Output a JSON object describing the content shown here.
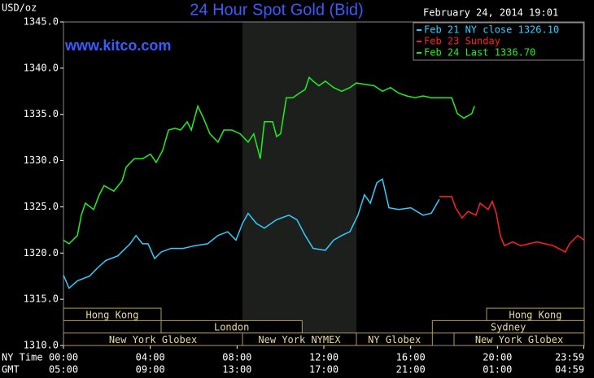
{
  "chart_data": {
    "type": "line",
    "title": "24 Hour Spot Gold (Bid)",
    "y_label": "USD/oz",
    "timestamp": "February 24, 2014 19:01",
    "source": "www.kitco.com",
    "x_row_labels": [
      "NY Time",
      "GMT"
    ],
    "xlim": [
      0,
      24
    ],
    "ylim": [
      1310,
      1345
    ],
    "xticks": [
      {
        "value": 0,
        "label": "00:00"
      },
      {
        "value": 4,
        "label": "04:00"
      },
      {
        "value": 8,
        "label": "08:00"
      },
      {
        "value": 12,
        "label": "12:00"
      },
      {
        "value": 16,
        "label": "16:00"
      },
      {
        "value": 20,
        "label": "20:00"
      },
      {
        "value": 23.98,
        "label": "23:59"
      }
    ],
    "gmt_ticks": [
      {
        "value": 0,
        "label": "05:00"
      },
      {
        "value": 4,
        "label": "09:00"
      },
      {
        "value": 8,
        "label": "13:00"
      },
      {
        "value": 12,
        "label": "17:00"
      },
      {
        "value": 16,
        "label": "21:00"
      },
      {
        "value": 20,
        "label": "01:00"
      },
      {
        "value": 23.98,
        "label": "04:59"
      }
    ],
    "yticks": [
      {
        "value": 1310,
        "label": "1310.0"
      },
      {
        "value": 1315,
        "label": "1315.0"
      },
      {
        "value": 1320,
        "label": "1320.0"
      },
      {
        "value": 1325,
        "label": "1325.0"
      },
      {
        "value": 1330,
        "label": "1330.0"
      },
      {
        "value": 1335,
        "label": "1335.0"
      },
      {
        "value": 1340,
        "label": "1340.0"
      },
      {
        "value": 1345,
        "label": "1345.0"
      }
    ],
    "grid": false,
    "legend": "top-right",
    "shade": [
      8.25,
      13.5
    ],
    "sessions": [
      [
        {
          "label": "Hong Kong",
          "start": 0,
          "end": 4.5
        },
        {
          "label": "Hong Kong",
          "start": 19.5,
          "end": 24
        }
      ],
      [
        {
          "label": "London",
          "start": 4.5,
          "end": 11
        },
        {
          "label": "Sydney",
          "start": 17,
          "end": 24
        }
      ],
      [
        {
          "label": "New York Globex",
          "start": 0,
          "end": 8.25
        },
        {
          "label": "New York NYMEX",
          "start": 8.25,
          "end": 13.5
        },
        {
          "label": "NY Globex",
          "start": 13.5,
          "end": 17
        },
        {
          "label": "New York Globex",
          "start": 18,
          "end": 24
        }
      ]
    ],
    "series": [
      {
        "name": "Feb 21 NY close 1326.10",
        "color": "#33ccff",
        "x": [
          0,
          0.26,
          0.64,
          1.2,
          1.57,
          1.95,
          2.51,
          3.07,
          3.34,
          3.64,
          3.9,
          4.2,
          4.5,
          4.95,
          5.51,
          6.07,
          6.64,
          7.12,
          7.57,
          7.95,
          8.25,
          8.51,
          8.89,
          9.26,
          9.82,
          10.39,
          10.76,
          11.14,
          11.51,
          12.07,
          12.45,
          12.82,
          13.2,
          13.57,
          13.87,
          14.14,
          14.44,
          14.7,
          15.0,
          15.45,
          16.01,
          16.57,
          16.95,
          17.32
        ],
        "values": [
          1317.6,
          1316.2,
          1317.0,
          1317.5,
          1318.4,
          1319.2,
          1319.7,
          1321.0,
          1321.9,
          1321.0,
          1321.0,
          1319.4,
          1320.1,
          1320.5,
          1320.5,
          1320.8,
          1321.0,
          1321.9,
          1322.3,
          1321.4,
          1323.2,
          1324.3,
          1323.2,
          1322.7,
          1323.6,
          1324.1,
          1323.6,
          1321.9,
          1320.5,
          1320.3,
          1321.4,
          1321.9,
          1322.3,
          1324.1,
          1326.3,
          1325.4,
          1327.6,
          1328.0,
          1324.9,
          1324.7,
          1324.9,
          1324.1,
          1324.3,
          1325.8
        ]
      },
      {
        "name": "Feb 23 Sunday",
        "color": "#ff2020",
        "x": [
          17.32,
          17.89,
          18.07,
          18.37,
          18.64,
          19.01,
          19.2,
          19.57,
          19.76,
          19.95,
          20.13,
          20.32,
          20.7,
          21.07,
          21.82,
          22.57,
          23.13,
          23.32,
          23.7,
          24
        ],
        "values": [
          1326.1,
          1326.1,
          1324.9,
          1323.8,
          1324.5,
          1324.1,
          1325.4,
          1324.7,
          1325.6,
          1324.3,
          1321.9,
          1320.8,
          1321.2,
          1320.8,
          1321.2,
          1320.8,
          1320.1,
          1321.0,
          1321.9,
          1321.4
        ]
      },
      {
        "name": "Feb 24 Last 1336.70",
        "color": "#22ee22",
        "x": [
          0,
          0.26,
          0.64,
          0.82,
          1.01,
          1.39,
          1.65,
          1.87,
          2.32,
          2.7,
          2.89,
          3.26,
          3.64,
          4.01,
          4.27,
          4.57,
          4.84,
          5.14,
          5.4,
          5.7,
          5.89,
          6.19,
          6.45,
          6.75,
          7.12,
          7.39,
          7.76,
          8.14,
          8.51,
          8.77,
          9.07,
          9.26,
          9.64,
          9.82,
          10.01,
          10.27,
          10.57,
          10.87,
          11.14,
          11.32,
          11.51,
          11.77,
          12.07,
          12.45,
          12.82,
          13.2,
          13.5,
          13.76,
          14.32,
          14.7,
          15.07,
          15.45,
          15.82,
          16.2,
          16.57,
          16.95,
          17.32,
          17.89,
          18.15,
          18.45,
          18.82,
          18.94
        ],
        "values": [
          1321.4,
          1321.0,
          1321.9,
          1324.1,
          1325.4,
          1324.7,
          1326.3,
          1327.3,
          1326.7,
          1327.8,
          1329.3,
          1330.2,
          1330.2,
          1330.7,
          1329.8,
          1331.1,
          1333.3,
          1333.5,
          1333.3,
          1334.2,
          1333.3,
          1335.9,
          1334.6,
          1332.9,
          1332.0,
          1333.3,
          1333.3,
          1332.9,
          1332.0,
          1332.9,
          1330.2,
          1334.2,
          1334.2,
          1332.6,
          1332.9,
          1336.8,
          1336.8,
          1337.3,
          1337.7,
          1339.0,
          1338.6,
          1338.1,
          1338.6,
          1337.9,
          1337.5,
          1337.9,
          1338.4,
          1338.3,
          1338.1,
          1337.5,
          1337.9,
          1337.3,
          1337.0,
          1336.8,
          1337.0,
          1336.8,
          1336.8,
          1336.8,
          1335.1,
          1334.6,
          1335.1,
          1335.9
        ]
      }
    ]
  }
}
